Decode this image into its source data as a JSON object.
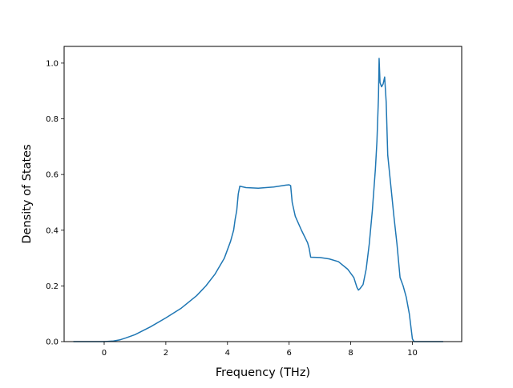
{
  "chart_data": {
    "type": "line",
    "title": "",
    "xlabel": "Frequency (THz)",
    "ylabel": "Density of States",
    "xlim": [
      -1.3,
      11.6
    ],
    "ylim": [
      0.0,
      1.06
    ],
    "xticks": [
      0,
      2,
      4,
      6,
      8,
      10
    ],
    "yticks": [
      0.0,
      0.2,
      0.4,
      0.6,
      0.8,
      1.0
    ],
    "xtick_labels": [
      "0",
      "2",
      "4",
      "6",
      "8",
      "10"
    ],
    "ytick_labels": [
      "0.0",
      "0.2",
      "0.4",
      "0.6",
      "0.8",
      "1.0"
    ],
    "grid": false,
    "series": [
      {
        "color": "#1f77b4",
        "x": [
          -1.0,
          -0.5,
          0.0,
          0.3,
          0.5,
          0.7,
          1.0,
          1.5,
          2.0,
          2.5,
          3.0,
          3.3,
          3.6,
          3.9,
          4.1,
          4.2,
          4.25,
          4.3,
          4.35,
          4.4,
          4.6,
          5.0,
          5.5,
          5.9,
          6.0,
          6.05,
          6.1,
          6.2,
          6.4,
          6.6,
          6.65,
          6.7,
          7.0,
          7.3,
          7.6,
          7.9,
          8.1,
          8.2,
          8.25,
          8.3,
          8.4,
          8.5,
          8.6,
          8.7,
          8.8,
          8.85,
          8.9,
          8.92,
          8.95,
          9.0,
          9.05,
          9.1,
          9.15,
          9.2,
          9.3,
          9.4,
          9.5,
          9.55,
          9.6,
          9.7,
          9.8,
          9.9,
          10.0,
          10.05,
          10.5,
          11.0
        ],
        "y": [
          0.0,
          0.0,
          0.0,
          0.002,
          0.006,
          0.013,
          0.025,
          0.053,
          0.085,
          0.12,
          0.165,
          0.2,
          0.243,
          0.3,
          0.36,
          0.4,
          0.44,
          0.47,
          0.53,
          0.558,
          0.553,
          0.551,
          0.555,
          0.562,
          0.563,
          0.56,
          0.5,
          0.45,
          0.4,
          0.355,
          0.335,
          0.303,
          0.302,
          0.297,
          0.287,
          0.26,
          0.23,
          0.195,
          0.185,
          0.19,
          0.205,
          0.26,
          0.35,
          0.47,
          0.62,
          0.72,
          0.88,
          1.017,
          0.93,
          0.915,
          0.925,
          0.95,
          0.86,
          0.67,
          0.56,
          0.45,
          0.35,
          0.29,
          0.23,
          0.2,
          0.16,
          0.1,
          0.01,
          0.0,
          0.0,
          0.0
        ]
      }
    ]
  }
}
